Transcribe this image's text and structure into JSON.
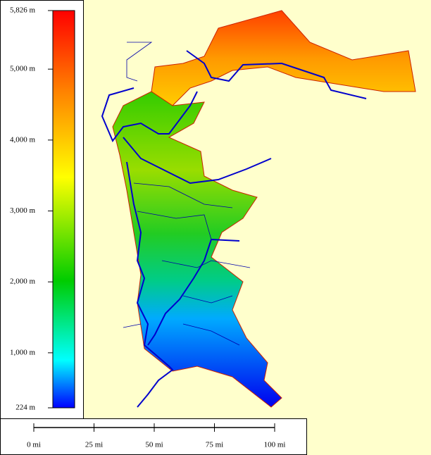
{
  "legend": {
    "ticks": [
      {
        "value": 5826,
        "label": "5,826 m"
      },
      {
        "value": 5000,
        "label": "5,000 m"
      },
      {
        "value": 4000,
        "label": "4,000 m"
      },
      {
        "value": 3000,
        "label": "3,000 m"
      },
      {
        "value": 2000,
        "label": "2,000 m"
      },
      {
        "value": 1000,
        "label": "1,000 m"
      },
      {
        "value": 224,
        "label": "224 m"
      }
    ]
  },
  "scale_bar": {
    "ticks": [
      {
        "value": 0,
        "label": "0 mi"
      },
      {
        "value": 25,
        "label": "25 mi"
      },
      {
        "value": 50,
        "label": "50 mi"
      },
      {
        "value": 75,
        "label": "75 mi"
      },
      {
        "value": 100,
        "label": "100 mi"
      }
    ]
  }
}
